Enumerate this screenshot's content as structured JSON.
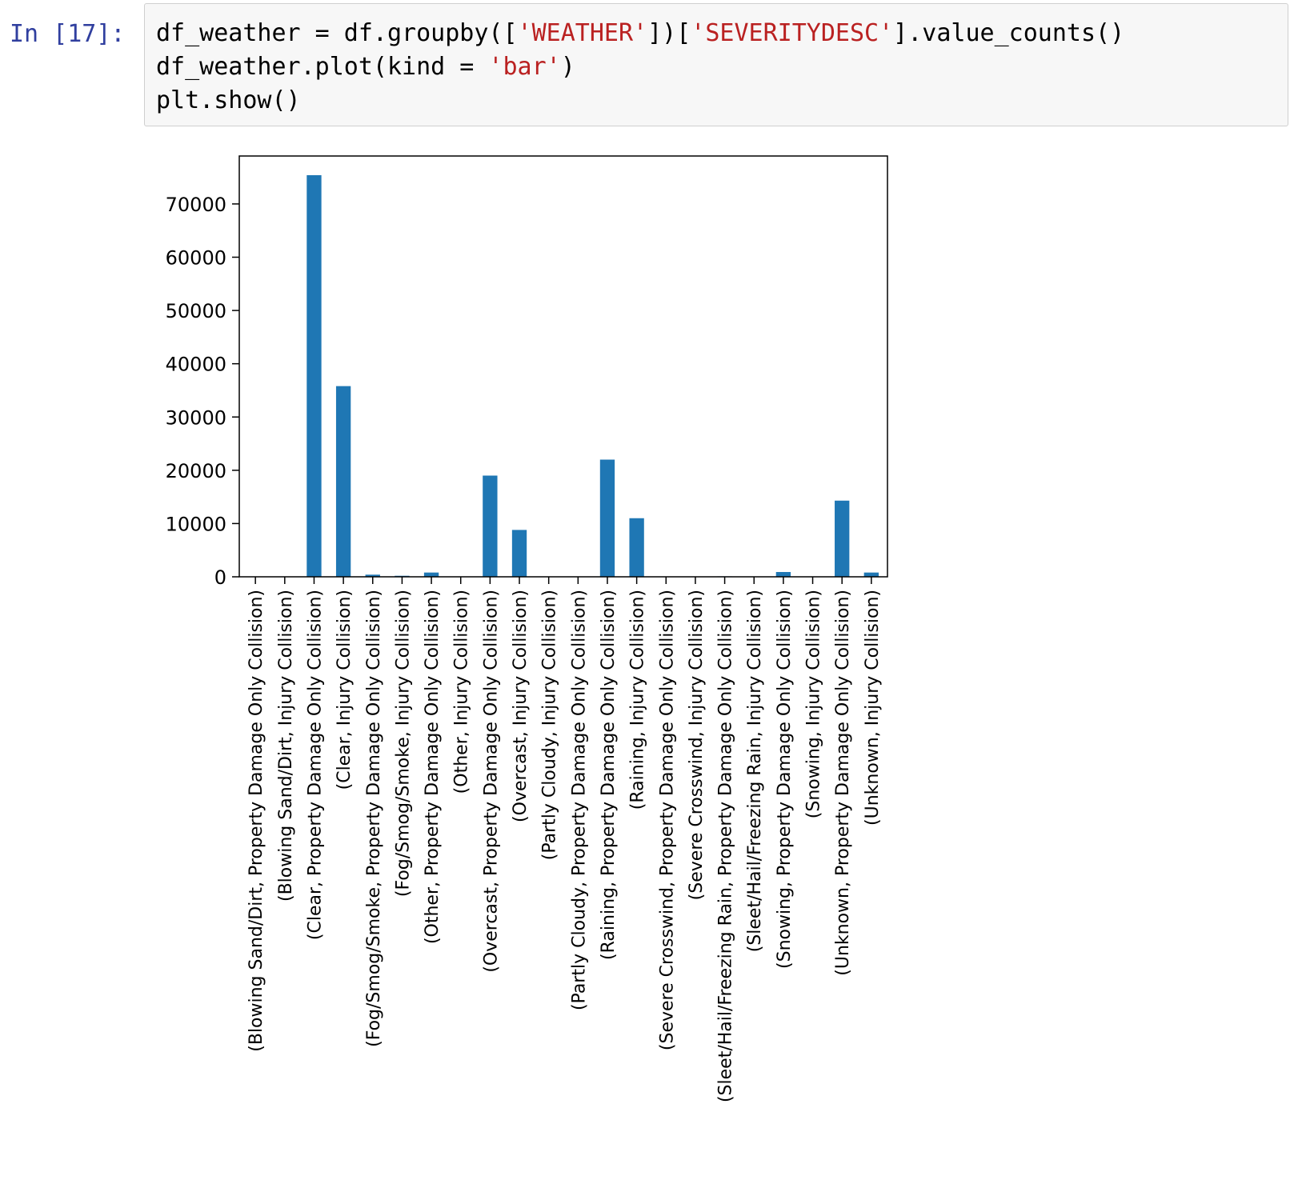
{
  "cell": {
    "prompt": "In [17]:",
    "code_lines": [
      [
        {
          "t": "df_weather = df.groupby(["
        },
        {
          "t": "'WEATHER'",
          "s": true
        },
        {
          "t": "])["
        },
        {
          "t": "'SEVERITYDESC'",
          "s": true
        },
        {
          "t": "].value_counts()"
        }
      ],
      [
        {
          "t": "df_weather.plot(kind = "
        },
        {
          "t": "'bar'",
          "s": true
        },
        {
          "t": ")"
        }
      ],
      [
        {
          "t": "plt.show()"
        }
      ]
    ]
  },
  "colors": {
    "bar": "#1f77b4",
    "prompt": "#303f9f",
    "string": "#ba2121",
    "cell_bg": "#f7f7f7",
    "cell_border": "#cfcfcf"
  },
  "chart_data": {
    "type": "bar",
    "title": "",
    "xlabel": "",
    "ylabel": "",
    "ylim": [
      0,
      79000
    ],
    "yticks": [
      0,
      10000,
      20000,
      30000,
      40000,
      50000,
      60000,
      70000
    ],
    "grid": false,
    "legend": "none",
    "categories": [
      "(Blowing Sand/Dirt, Property Damage Only Collision)",
      "(Blowing Sand/Dirt, Injury Collision)",
      "(Clear, Property Damage Only Collision)",
      "(Clear, Injury Collision)",
      "(Fog/Smog/Smoke, Property Damage Only Collision)",
      "(Fog/Smog/Smoke, Injury Collision)",
      "(Other, Property Damage Only Collision)",
      "(Other, Injury Collision)",
      "(Overcast, Property Damage Only Collision)",
      "(Overcast, Injury Collision)",
      "(Partly Cloudy, Injury Collision)",
      "(Partly Cloudy, Property Damage Only Collision)",
      "(Raining, Property Damage Only Collision)",
      "(Raining, Injury Collision)",
      "(Severe Crosswind, Property Damage Only Collision)",
      "(Severe Crosswind, Injury Collision)",
      "(Sleet/Hail/Freezing Rain, Property Damage Only Collision)",
      "(Sleet/Hail/Freezing Rain, Injury Collision)",
      "(Snowing, Property Damage Only Collision)",
      "(Snowing, Injury Collision)",
      "(Unknown, Property Damage Only Collision)",
      "(Unknown, Injury Collision)"
    ],
    "values": [
      41,
      15,
      75400,
      35800,
      400,
      190,
      800,
      30,
      19000,
      8800,
      2,
      3,
      22000,
      11000,
      18,
      7,
      85,
      28,
      900,
      15,
      14300,
      800
    ]
  }
}
